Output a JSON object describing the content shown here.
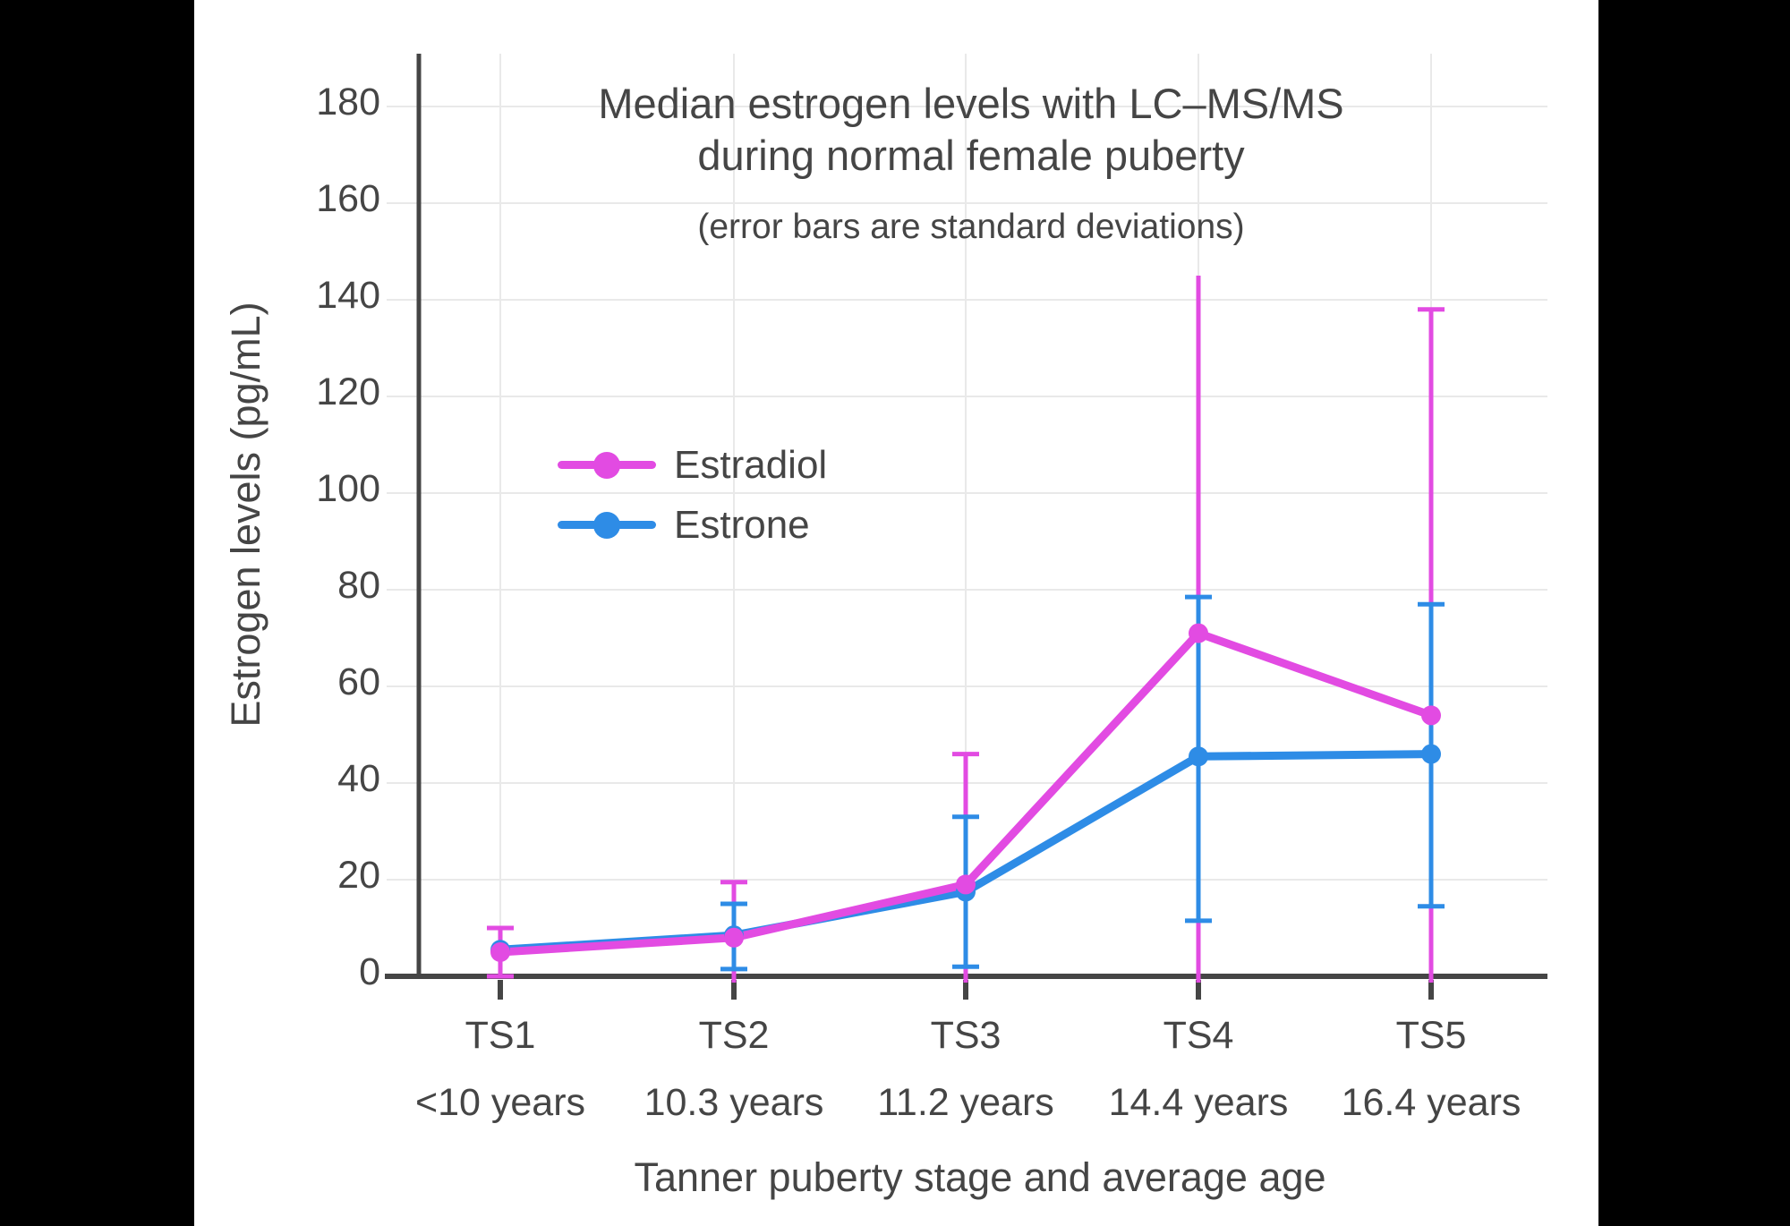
{
  "figure": {
    "title_lines": [
      "Median estrogen levels with LC–MS/MS",
      "during normal female puberty"
    ],
    "subtitle": "(error bars are standard deviations)"
  },
  "colors": {
    "estradiol": "#E24BE2",
    "estrone": "#2E8CE6",
    "axis_text": "#454545",
    "gridline": "#E9E9E9",
    "background": "#FFFFFF",
    "letterbox": "#000000"
  },
  "chart_data": {
    "type": "line",
    "title": "Median estrogen levels with LC–MS/MS during normal female puberty",
    "subtitle": "(error bars are standard deviations)",
    "xlabel": "Tanner puberty stage and average age",
    "ylabel": "Estrogen levels (pg/mL)",
    "categories": [
      "TS1",
      "TS2",
      "TS3",
      "TS4",
      "TS5"
    ],
    "category_sublabels": [
      "<10 years",
      "10.3 years",
      "11.2 years",
      "14.4 years",
      "16.4 years"
    ],
    "yticks": [
      0,
      20,
      40,
      60,
      80,
      100,
      120,
      140,
      160,
      180
    ],
    "ylim": [
      0,
      190
    ],
    "grid": true,
    "legend_position": "inside-upper-left",
    "error_bar_meaning": "standard deviation",
    "series": [
      {
        "name": "Estradiol",
        "color": "#E24BE2",
        "values": [
          5,
          8,
          19,
          71,
          54
        ],
        "err_low": [
          0,
          0,
          0,
          0,
          0
        ],
        "err_high": [
          10,
          19.5,
          46,
          145,
          138
        ],
        "caps_low": [
          true,
          false,
          false,
          false,
          false
        ],
        "caps_high": [
          true,
          true,
          true,
          false,
          true
        ]
      },
      {
        "name": "Estrone",
        "color": "#2E8CE6",
        "values": [
          5.5,
          8.5,
          17.5,
          45.5,
          46
        ],
        "err_low": [
          null,
          1.5,
          2,
          11.5,
          14.5
        ],
        "err_high": [
          null,
          15,
          33,
          78.5,
          77
        ],
        "caps_low": [
          false,
          true,
          true,
          true,
          true
        ],
        "caps_high": [
          false,
          true,
          true,
          true,
          true
        ]
      }
    ]
  }
}
